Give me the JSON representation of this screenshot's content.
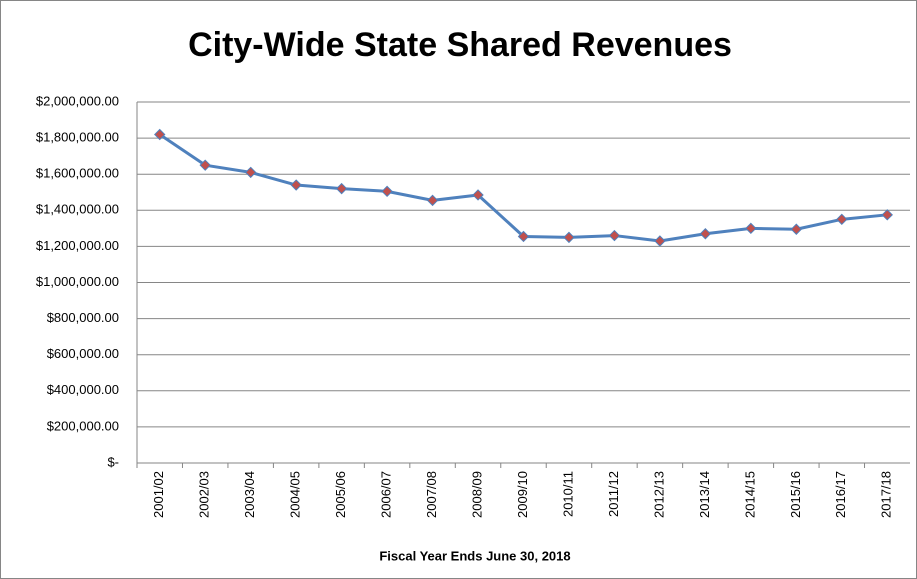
{
  "chart_data": {
    "type": "line",
    "title": "City-Wide State Shared Revenues",
    "x_label": "Fiscal Year Ends June 30, 2018",
    "categories": [
      "2001/02",
      "2002/03",
      "2003/04",
      "2004/05",
      "2005/06",
      "2006/07",
      "2007/08",
      "2008/09",
      "2009/10",
      "2010/11",
      "2011/12",
      "2012/13",
      "2013/14",
      "2014/15",
      "2015/16",
      "2016/17",
      "2017/18"
    ],
    "series": [
      {
        "name": "State Shared Revenues",
        "color": "#4f81bd",
        "marker_color": "#c0504d",
        "values": [
          1820000,
          1650000,
          1610000,
          1540000,
          1520000,
          1505000,
          1455000,
          1485000,
          1255000,
          1250000,
          1260000,
          1230000,
          1270000,
          1300000,
          1295000,
          1350000,
          1375000
        ]
      }
    ],
    "ylim": [
      0,
      2000000
    ],
    "yticks": [
      {
        "value": 0,
        "label": "$-"
      },
      {
        "value": 200000,
        "label": "$200,000.00"
      },
      {
        "value": 400000,
        "label": "$400,000.00"
      },
      {
        "value": 600000,
        "label": "$600,000.00"
      },
      {
        "value": 800000,
        "label": "$800,000.00"
      },
      {
        "value": 1000000,
        "label": "$1,000,000.00"
      },
      {
        "value": 1200000,
        "label": "$1,200,000.00"
      },
      {
        "value": 1400000,
        "label": "$1,400,000.00"
      },
      {
        "value": 1600000,
        "label": "$1,600,000.00"
      },
      {
        "value": 1800000,
        "label": "$1,800,000.00"
      },
      {
        "value": 2000000,
        "label": "$2,000,000.00"
      }
    ],
    "grid": true
  }
}
